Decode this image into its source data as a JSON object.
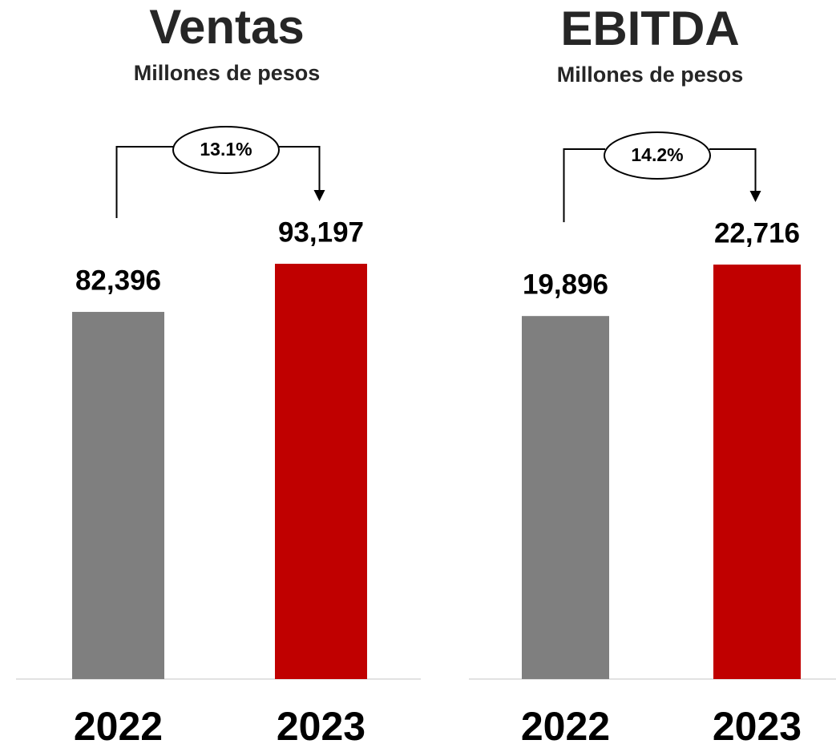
{
  "chart_data": [
    {
      "type": "bar",
      "title": "Ventas",
      "subtitle": "Millones de pesos",
      "categories": [
        "2022",
        "2023"
      ],
      "values": [
        82396,
        93197
      ],
      "value_labels": [
        "82,396",
        "93,197"
      ],
      "colors": [
        "#7f7f7f",
        "#c00000"
      ],
      "annotation": "13.1%"
    },
    {
      "type": "bar",
      "title": "EBITDA",
      "subtitle": "Millones de pesos",
      "categories": [
        "2022",
        "2023"
      ],
      "values": [
        19896,
        22716
      ],
      "value_labels": [
        "19,896",
        "22,716"
      ],
      "colors": [
        "#7f7f7f",
        "#c00000"
      ],
      "annotation": "14.2%"
    }
  ]
}
